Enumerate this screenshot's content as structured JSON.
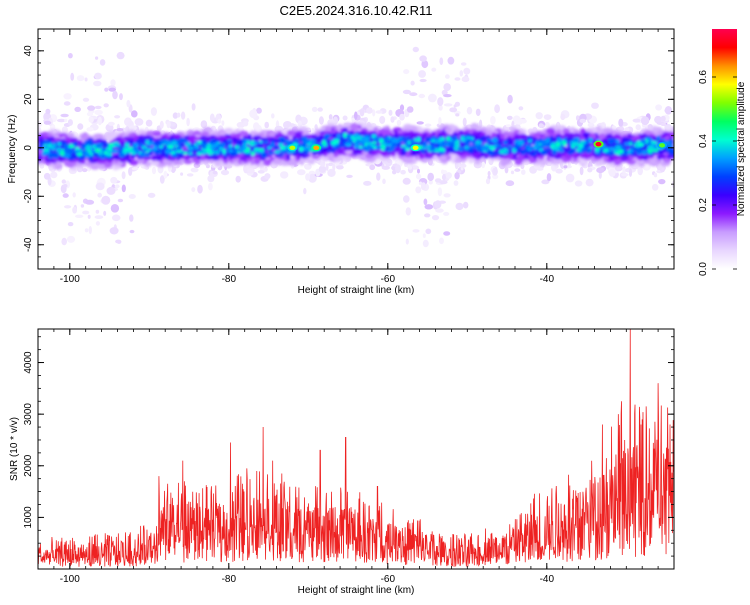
{
  "chart_data": [
    {
      "type": "heatmap",
      "title": "C2E5.2024.316.10.42.R11",
      "xlabel": "Height of straight line (km)",
      "ylabel": "Frequency (Hz)",
      "xlim": [
        -104,
        -24
      ],
      "ylim": [
        -50,
        49
      ],
      "xticks": [
        -100,
        -80,
        -60,
        -40
      ],
      "yticks": [
        -40,
        -20,
        0,
        20,
        40
      ],
      "grid": false,
      "band": {
        "center_hz": [
          [
            -104,
            0
          ],
          [
            -100,
            -1
          ],
          [
            -95,
            -1
          ],
          [
            -90,
            0
          ],
          [
            -85,
            0
          ],
          [
            -80,
            0
          ],
          [
            -75,
            0
          ],
          [
            -70,
            1
          ],
          [
            -65,
            3
          ],
          [
            -60,
            2
          ],
          [
            -55,
            1
          ],
          [
            -50,
            2
          ],
          [
            -45,
            0
          ],
          [
            -40,
            1
          ],
          [
            -35,
            1
          ],
          [
            -30,
            0
          ],
          [
            -24,
            1
          ]
        ],
        "half_width_hz": 7
      },
      "hotspots": [
        {
          "x": -72,
          "y": 0,
          "amplitude": 0.55
        },
        {
          "x": -69,
          "y": 0,
          "amplitude": 0.62
        },
        {
          "x": -56.5,
          "y": 0,
          "amplitude": 0.58
        },
        {
          "x": -33.5,
          "y": 1.5,
          "amplitude": 0.72
        },
        {
          "x": -25.5,
          "y": 1,
          "amplitude": 0.5
        }
      ],
      "noise_columns_km": [
        -98,
        -95,
        -55,
        -53
      ],
      "colorbar": {
        "label": "Normalized spectral amplitude",
        "range": [
          0,
          0.75
        ],
        "ticks": [
          0.0,
          0.2,
          0.4,
          0.6
        ],
        "stops": [
          "#ffffff",
          "#e8d6ff",
          "#c89cff",
          "#8c1aff",
          "#3a00ff",
          "#0040ff",
          "#00a0ff",
          "#00ffd0",
          "#00ff60",
          "#80ff00",
          "#ffff00",
          "#ff9000",
          "#ff0000",
          "#ff0050"
        ]
      }
    },
    {
      "type": "line",
      "xlabel": "Height of straight line (km)",
      "ylabel": "SNR (10 * v/v)",
      "xlim": [
        -104,
        -24
      ],
      "ylim": [
        0,
        4650
      ],
      "xticks": [
        -100,
        -80,
        -60,
        -40
      ],
      "yticks": [
        1000,
        2000,
        3000,
        4000
      ],
      "grid": false,
      "color": "#ee2222",
      "envelope": {
        "x": [
          -104,
          -100,
          -95,
          -92,
          -90,
          -89,
          -88,
          -85,
          -82,
          -80,
          -78,
          -76,
          -74,
          -72,
          -70,
          -68,
          -66,
          -64,
          -62,
          -60,
          -58,
          -56,
          -54,
          -52,
          -50,
          -48,
          -46,
          -44,
          -42,
          -40,
          -38,
          -36,
          -34,
          -32,
          -30,
          -28,
          -26,
          -24
        ],
        "base": [
          200,
          200,
          200,
          250,
          300,
          450,
          600,
          600,
          700,
          650,
          750,
          850,
          700,
          650,
          600,
          600,
          600,
          550,
          500,
          450,
          400,
          350,
          250,
          200,
          200,
          250,
          300,
          350,
          450,
          550,
          650,
          750,
          850,
          950,
          1050,
          1150,
          1250,
          1200
        ],
        "peak": [
          600,
          650,
          700,
          800,
          900,
          1500,
          1700,
          1800,
          1600,
          1700,
          2100,
          2000,
          2000,
          1600,
          1700,
          1500,
          1700,
          1600,
          1300,
          1300,
          1100,
          1000,
          800,
          700,
          700,
          800,
          900,
          1000,
          1500,
          1700,
          1900,
          2000,
          2300,
          2800,
          3200,
          3300,
          3400,
          3000
        ]
      },
      "spikes": [
        {
          "x": -88.8,
          "y": 1800
        },
        {
          "x": -85.8,
          "y": 2100
        },
        {
          "x": -79.8,
          "y": 2450
        },
        {
          "x": -75.7,
          "y": 2750
        },
        {
          "x": -74.5,
          "y": 2100
        },
        {
          "x": -68.5,
          "y": 2300
        },
        {
          "x": -65.3,
          "y": 2550
        },
        {
          "x": -61.3,
          "y": 1600
        },
        {
          "x": -33,
          "y": 2800
        },
        {
          "x": -31,
          "y": 3000
        },
        {
          "x": -30.6,
          "y": 3250
        },
        {
          "x": -29.5,
          "y": 4650
        },
        {
          "x": -28,
          "y": 2900
        },
        {
          "x": -27.5,
          "y": 3150
        },
        {
          "x": -26,
          "y": 3600
        },
        {
          "x": -24.5,
          "y": 2800
        }
      ],
      "n_points": 1600
    }
  ]
}
